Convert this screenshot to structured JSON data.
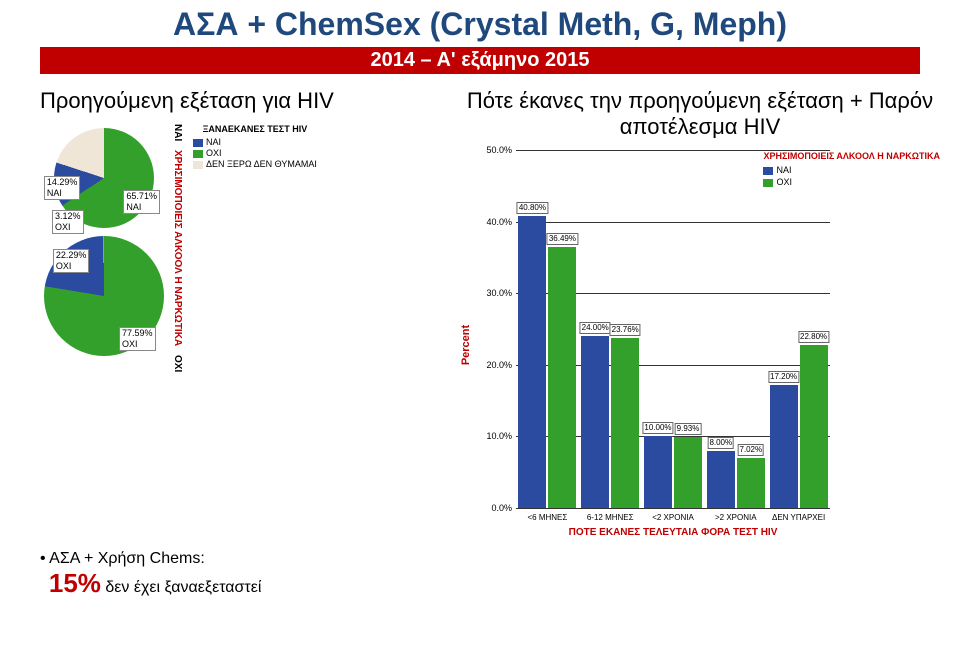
{
  "title": "ΑΣΑ + ChemSex (Crystal Meth, G, Meph)",
  "subtitle": "2014 – Α' εξάμηνο 2015",
  "left": {
    "heading": "Προηγούμενη εξέταση για HIV",
    "axis_label": "ΧΡΗΣΙΜΟΠΟΙΕΙΣ ΑΛΚΟΟΛ Η ΝΑΡΚΩΤΙΚΑ",
    "sub_nai": "ΝΑΙ",
    "sub_oxi": "ΟΧΙ",
    "legend_title": "ΞΑΝΑΕΚΑΝΕΣ ΤΕΣΤ HIV",
    "legend_items": [
      "ΝΑΙ",
      "ΟΧΙ",
      "ΔΕΝ ΞΕΡΩ ΔΕΝ ΘΥΜΑΜΑΙ"
    ],
    "legend_colors": [
      "#2a4ba0",
      "#33a02c",
      "#f0e6d8"
    ],
    "pies": [
      {
        "radius": 50,
        "slices": [
          {
            "pct": 65.71,
            "color": "#33a02c",
            "label": "65.71%\nΝΑΙ"
          },
          {
            "pct": 14.29,
            "color": "#2a4ba0",
            "label": "14.29%\nΝΑΙ"
          },
          {
            "pct": 20.0,
            "color": "#f0e6d8",
            "label": ""
          }
        ],
        "extra_label": "3.12%\nΟΧΙ"
      },
      {
        "radius": 60,
        "slices": [
          {
            "pct": 77.59,
            "color": "#33a02c",
            "label": "77.59%\nΟΧΙ"
          },
          {
            "pct": 22.29,
            "color": "#2a4ba0",
            "label": "22.29%\nΟΧΙ"
          },
          {
            "pct": 0.12,
            "color": "#f0e6d8",
            "label": ""
          }
        ]
      }
    ]
  },
  "right": {
    "heading": "Πότε έκανες την προηγούμενη εξέταση + Παρόν αποτέλεσμα HIV",
    "yaxis": "Percent",
    "xaxis": "ΠΟΤΕ ΕΚΑΝΕΣ ΤΕΛΕΥΤΑΙΑ ΦΟΡΑ ΤΕΣΤ HIV",
    "legend_title": "ΧΡΗΣΙΜΟΠΟΙΕΙΣ ΑΛΚΟΟΛ Η ΝΑΡΚΩΤΙΚΑ",
    "legend_items": [
      {
        "label": "ΝΑΙ",
        "color": "#2a4ba0"
      },
      {
        "label": "ΟΧΙ",
        "color": "#33a02c"
      }
    ],
    "ylim": [
      0,
      50
    ],
    "ytick_step": 10,
    "cats": [
      "<6 ΜΗΝΕΣ",
      "6-12 ΜΗΝΕΣ",
      "<2 ΧΡΟΝΙΑ",
      ">2 ΧΡΟΝΙΑ",
      "ΔΕΝ ΥΠΑΡΧΕΙ"
    ],
    "series": [
      {
        "color": "#2a4ba0",
        "vals": [
          40.8,
          24.0,
          10.0,
          8.0,
          17.2
        ]
      },
      {
        "color": "#33a02c",
        "vals": [
          36.49,
          23.76,
          9.93,
          7.02,
          22.8
        ]
      }
    ]
  },
  "bullet": {
    "prefix": "ΑΣΑ + Χρήση Chems: ",
    "highlight": "15%",
    "suffix": " δεν έχει ξαναεξεταστεί"
  }
}
